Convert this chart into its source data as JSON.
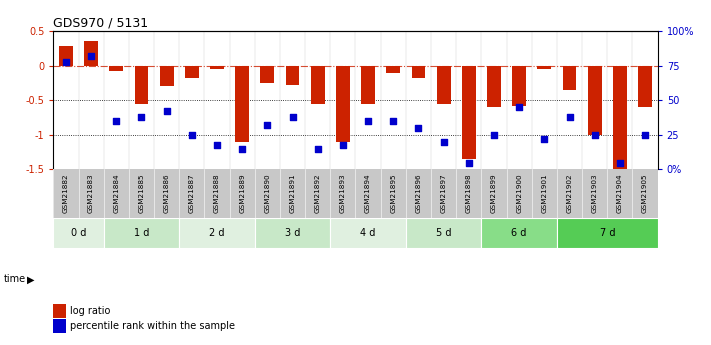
{
  "title": "GDS970 / 5131",
  "samples": [
    "GSM21882",
    "GSM21883",
    "GSM21884",
    "GSM21885",
    "GSM21886",
    "GSM21887",
    "GSM21888",
    "GSM21889",
    "GSM21890",
    "GSM21891",
    "GSM21892",
    "GSM21893",
    "GSM21894",
    "GSM21895",
    "GSM21896",
    "GSM21897",
    "GSM21898",
    "GSM21899",
    "GSM21900",
    "GSM21901",
    "GSM21902",
    "GSM21903",
    "GSM21904",
    "GSM21905"
  ],
  "log_ratio": [
    0.28,
    0.35,
    -0.08,
    -0.55,
    -0.3,
    -0.18,
    -0.05,
    -1.1,
    -0.25,
    -0.28,
    -0.55,
    -1.1,
    -0.55,
    -0.1,
    -0.18,
    -0.55,
    -1.35,
    -0.6,
    -0.58,
    -0.05,
    -0.35,
    -1.0,
    -1.5,
    -0.6
  ],
  "percentile_rank": [
    78,
    82,
    35,
    38,
    42,
    25,
    18,
    15,
    32,
    38,
    15,
    18,
    35,
    35,
    30,
    20,
    5,
    25,
    45,
    22,
    38,
    25,
    5,
    25
  ],
  "time_groups": [
    {
      "label": "0 d",
      "start": 0,
      "end": 2,
      "color": "#e0f0e0"
    },
    {
      "label": "1 d",
      "start": 2,
      "end": 5,
      "color": "#c8e8c8"
    },
    {
      "label": "2 d",
      "start": 5,
      "end": 8,
      "color": "#e0f0e0"
    },
    {
      "label": "3 d",
      "start": 8,
      "end": 11,
      "color": "#c8e8c8"
    },
    {
      "label": "4 d",
      "start": 11,
      "end": 14,
      "color": "#e0f0e0"
    },
    {
      "label": "5 d",
      "start": 14,
      "end": 17,
      "color": "#c8e8c8"
    },
    {
      "label": "6 d",
      "start": 17,
      "end": 20,
      "color": "#88dd88"
    },
    {
      "label": "7 d",
      "start": 20,
      "end": 24,
      "color": "#55cc55"
    }
  ],
  "bar_color": "#cc2200",
  "dot_color": "#0000cc",
  "ylim_left": [
    -1.5,
    0.5
  ],
  "ylim_right": [
    0,
    100
  ],
  "yticks_left": [
    -1.5,
    -1.0,
    -0.5,
    0.0,
    0.5
  ],
  "ytick_labels_left": [
    "-1.5",
    "-1",
    "-0.5",
    "0",
    "0.5"
  ],
  "yticks_right": [
    0,
    25,
    50,
    75,
    100
  ],
  "ytick_labels_right": [
    "0%",
    "25",
    "50",
    "75",
    "100%"
  ],
  "hline_zero_color": "#cc2200",
  "hline_dotted_color": "black",
  "legend_log_ratio": "log ratio",
  "legend_percentile": "percentile rank within the sample",
  "sample_row_color": "#c8c8c8",
  "background_color": "white"
}
